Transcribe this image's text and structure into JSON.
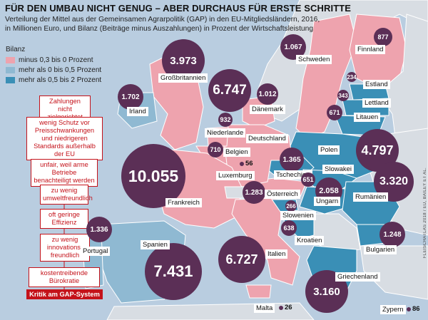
{
  "title": "FÜR DEN UMBAU NICHT GENUG – ABER DURCHAUS FÜR ERSTE SCHRITTE",
  "subtitle": [
    "Verteilung der Mittel aus der Gemeinsamen Agrarpolitik (GAP) in den EU-Mitgliedsländern, 2016,",
    "in Millionen Euro, und Bilanz (Beiträge minus Auszahlungen) in Prozent der Wirtschaftsleistung"
  ],
  "legend": {
    "title": "Bilanz",
    "items": [
      {
        "label": "minus 0,3 bis 0 Prozent",
        "color": "#eea3ae"
      },
      {
        "label": "mehr als 0 bis 0,5 Prozent",
        "color": "#8fb9d2"
      },
      {
        "label": "mehr als 0,5 bis 2 Prozent",
        "color": "#3a8fb6"
      }
    ]
  },
  "credit": "FLEISCHATLAS 2018 / EU, BAILEY ET AL.",
  "criticism": {
    "title": "Kritik am GAP-System",
    "items": [
      "Zahlungen nicht zielgerichtet",
      "wenig Schutz vor Preisschwankungen und niedrigeren Standards außerhalb der EU",
      "unfair, weil arme Betriebe benachteiligt werden",
      "zu wenig umweltfreundlich",
      "oft geringe Effizienz",
      "zu wenig innovations-freundlich",
      "kostentreibende Bürokratie"
    ]
  },
  "countries": [
    {
      "name": "Großbritannien",
      "value": "3.973",
      "bilanz": "minus 0,3 bis 0 Prozent"
    },
    {
      "name": "Irland",
      "value": "1.702",
      "bilanz": "mehr als 0 bis 0,5 Prozent"
    },
    {
      "name": "Dänemark",
      "value": "1.012",
      "bilanz": "minus 0,3 bis 0 Prozent"
    },
    {
      "name": "Deutschland",
      "value": "6.747",
      "bilanz": "minus 0,3 bis 0 Prozent"
    },
    {
      "name": "Niederlande",
      "value": "932",
      "bilanz": "minus 0,3 bis 0 Prozent"
    },
    {
      "name": "Belgien",
      "value": "710",
      "bilanz": "minus 0,3 bis 0 Prozent"
    },
    {
      "name": "Luxemburg",
      "value": "56",
      "bilanz": "minus 0,3 bis 0 Prozent"
    },
    {
      "name": "Frankreich",
      "value": "10.055",
      "bilanz": "minus 0,3 bis 0 Prozent"
    },
    {
      "name": "Schweden",
      "value": "1.067",
      "bilanz": "minus 0,3 bis 0 Prozent"
    },
    {
      "name": "Finnland",
      "value": "877",
      "bilanz": "minus 0,3 bis 0 Prozent"
    },
    {
      "name": "Estland",
      "value": "234",
      "bilanz": "mehr als 0,5 bis 2 Prozent"
    },
    {
      "name": "Lettland",
      "value": "343",
      "bilanz": "mehr als 0,5 bis 2 Prozent"
    },
    {
      "name": "Litauen",
      "value": "671",
      "bilanz": "mehr als 0,5 bis 2 Prozent"
    },
    {
      "name": "Polen",
      "value": "4.797",
      "bilanz": "mehr als 0,5 bis 2 Prozent"
    },
    {
      "name": "Tschechien",
      "value": "1.365",
      "bilanz": "mehr als 0,5 bis 2 Prozent"
    },
    {
      "name": "Slowakei",
      "value": "651",
      "bilanz": "mehr als 0,5 bis 2 Prozent"
    },
    {
      "name": "Österreich",
      "value": "1.283",
      "bilanz": "minus 0,3 bis 0 Prozent"
    },
    {
      "name": "Ungarn",
      "value": "2.058",
      "bilanz": "mehr als 0,5 bis 2 Prozent"
    },
    {
      "name": "Slowenien",
      "value": "266",
      "bilanz": "mehr als 0,5 bis 2 Prozent"
    },
    {
      "name": "Kroatien",
      "value": "638",
      "bilanz": "mehr als 0,5 bis 2 Prozent"
    },
    {
      "name": "Rumänien",
      "value": "3.320",
      "bilanz": "mehr als 0,5 bis 2 Prozent"
    },
    {
      "name": "Bulgarien",
      "value": "1.248",
      "bilanz": "mehr als 0,5 bis 2 Prozent"
    },
    {
      "name": "Griechenland",
      "value": "3.160",
      "bilanz": "mehr als 0,5 bis 2 Prozent"
    },
    {
      "name": "Italien",
      "value": "6.727",
      "bilanz": "minus 0,3 bis 0 Prozent"
    },
    {
      "name": "Spanien",
      "value": "7.431",
      "bilanz": "mehr als 0 bis 0,5 Prozent"
    },
    {
      "name": "Portugal",
      "value": "1.336",
      "bilanz": "mehr als 0 bis 0,5 Prozent"
    },
    {
      "name": "Malta",
      "value": "26",
      "bilanz": ""
    },
    {
      "name": "Zypern",
      "value": "86",
      "bilanz": ""
    }
  ]
}
